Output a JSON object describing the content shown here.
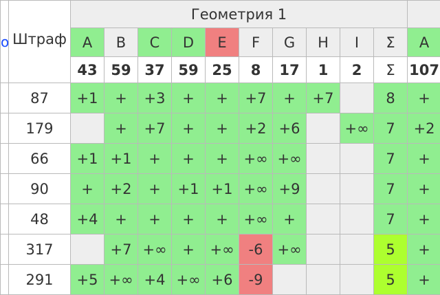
{
  "colors": {
    "solved": "#90ee90",
    "failed": "#f08080",
    "empty": "#eeeeee",
    "partial_total": "#adff2f",
    "penalty_header": "#1a4cff",
    "count_text": "#0b8a0b",
    "title_text": "#4f7fa5"
  },
  "header": {
    "left_fragment": "о",
    "penalty_label": "Штраф",
    "group_title": "Геометрия 1",
    "columns": [
      {
        "letter": "A",
        "count": "43",
        "status": "solved"
      },
      {
        "letter": "B",
        "count": "59",
        "status": "none"
      },
      {
        "letter": "C",
        "count": "37",
        "status": "solved"
      },
      {
        "letter": "D",
        "count": "59",
        "status": "solved"
      },
      {
        "letter": "E",
        "count": "25",
        "status": "failed"
      },
      {
        "letter": "F",
        "count": "8",
        "status": "none"
      },
      {
        "letter": "G",
        "count": "17",
        "status": "none"
      },
      {
        "letter": "H",
        "count": "1",
        "status": "none"
      },
      {
        "letter": "I",
        "count": "2",
        "status": "none"
      },
      {
        "letter": "Σ",
        "count": "Σ",
        "status": "none"
      },
      {
        "letter": "A",
        "count": "107",
        "status": "solved"
      }
    ]
  },
  "rows": [
    {
      "penalty": "87",
      "cells": [
        [
          "+1",
          "g"
        ],
        [
          "+",
          "g"
        ],
        [
          "+3",
          "g"
        ],
        [
          "+",
          "g"
        ],
        [
          "+",
          "g"
        ],
        [
          "+7",
          "g"
        ],
        [
          "+",
          "g"
        ],
        [
          "+7",
          "g"
        ],
        [
          "",
          "n"
        ],
        [
          "8",
          "g"
        ],
        [
          "+",
          "g"
        ]
      ]
    },
    {
      "penalty": "179",
      "cells": [
        [
          "",
          "n"
        ],
        [
          "+",
          "g"
        ],
        [
          "+7",
          "g"
        ],
        [
          "+",
          "g"
        ],
        [
          "+",
          "g"
        ],
        [
          "+2",
          "g"
        ],
        [
          "+6",
          "g"
        ],
        [
          "",
          "n"
        ],
        [
          "+∞",
          "g"
        ],
        [
          "7",
          "g"
        ],
        [
          "+2",
          "g"
        ]
      ]
    },
    {
      "penalty": "66",
      "cells": [
        [
          "+1",
          "g"
        ],
        [
          "+1",
          "g"
        ],
        [
          "+",
          "g"
        ],
        [
          "+",
          "g"
        ],
        [
          "+",
          "g"
        ],
        [
          "+∞",
          "g"
        ],
        [
          "+∞",
          "g"
        ],
        [
          "",
          "n"
        ],
        [
          "",
          "n"
        ],
        [
          "7",
          "g"
        ],
        [
          "+",
          "g"
        ]
      ]
    },
    {
      "penalty": "90",
      "cells": [
        [
          "+",
          "g"
        ],
        [
          "+2",
          "g"
        ],
        [
          "+",
          "g"
        ],
        [
          "+1",
          "g"
        ],
        [
          "+1",
          "g"
        ],
        [
          "+∞",
          "g"
        ],
        [
          "+9",
          "g"
        ],
        [
          "",
          "n"
        ],
        [
          "",
          "n"
        ],
        [
          "7",
          "g"
        ],
        [
          "+",
          "g"
        ]
      ]
    },
    {
      "penalty": "48",
      "cells": [
        [
          "+4",
          "g"
        ],
        [
          "+",
          "g"
        ],
        [
          "+",
          "g"
        ],
        [
          "+",
          "g"
        ],
        [
          "+",
          "g"
        ],
        [
          "+∞",
          "g"
        ],
        [
          "+",
          "g"
        ],
        [
          "",
          "n"
        ],
        [
          "",
          "n"
        ],
        [
          "7",
          "g"
        ],
        [
          "+",
          "g"
        ]
      ]
    },
    {
      "penalty": "317",
      "cells": [
        [
          "",
          "n"
        ],
        [
          "+7",
          "g"
        ],
        [
          "+∞",
          "g"
        ],
        [
          "+",
          "g"
        ],
        [
          "+∞",
          "g"
        ],
        [
          "-6",
          "r"
        ],
        [
          "+∞",
          "g"
        ],
        [
          "",
          "n"
        ],
        [
          "",
          "n"
        ],
        [
          "5",
          "y"
        ],
        [
          "+",
          "g"
        ]
      ]
    },
    {
      "penalty": "291",
      "cells": [
        [
          "+5",
          "g"
        ],
        [
          "+∞",
          "g"
        ],
        [
          "+4",
          "g"
        ],
        [
          "+∞",
          "g"
        ],
        [
          "+6",
          "g"
        ],
        [
          "-9",
          "r"
        ],
        [
          "",
          "n"
        ],
        [
          "",
          "n"
        ],
        [
          "",
          "n"
        ],
        [
          "5",
          "y"
        ],
        [
          "+",
          "g"
        ]
      ]
    }
  ]
}
